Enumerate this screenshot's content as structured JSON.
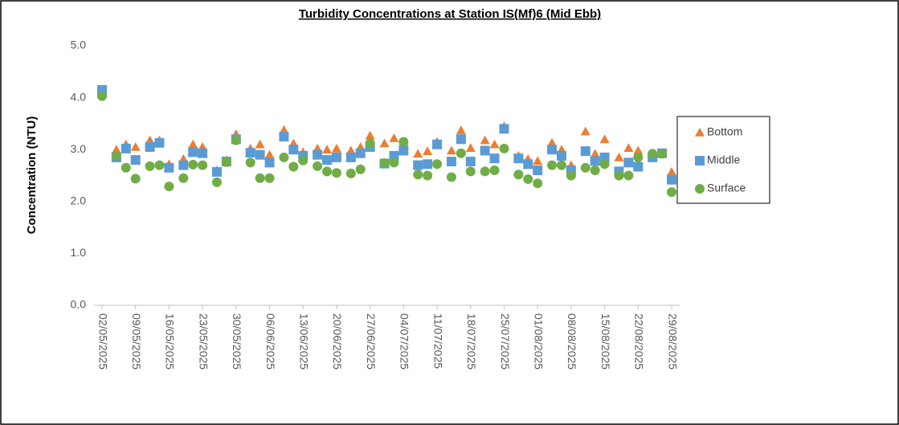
{
  "chart_data": {
    "type": "scatter",
    "title": "Turbidity Concentrations at Station IS(Mf)6 (Mid Ebb)",
    "ylabel": "Concentration (NTU)",
    "x": [
      "02/05/2025",
      "05/05/2025",
      "07/05/2025",
      "09/05/2025",
      "12/05/2025",
      "14/05/2025",
      "16/05/2025",
      "19/05/2025",
      "21/05/2025",
      "23/05/2025",
      "26/05/2025",
      "28/05/2025",
      "30/05/2025",
      "02/06/2025",
      "04/06/2025",
      "06/06/2025",
      "09/06/2025",
      "11/06/2025",
      "13/06/2025",
      "16/06/2025",
      "18/06/2025",
      "20/06/2025",
      "23/06/2025",
      "25/06/2025",
      "27/06/2025",
      "30/06/2025",
      "02/07/2025",
      "04/07/2025",
      "07/07/2025",
      "09/07/2025",
      "11/07/2025",
      "14/07/2025",
      "16/07/2025",
      "18/07/2025",
      "21/07/2025",
      "23/07/2025",
      "25/07/2025",
      "28/07/2025",
      "30/07/2025",
      "01/08/2025",
      "04/08/2025",
      "06/08/2025",
      "08/08/2025",
      "11/08/2025",
      "13/08/2025",
      "15/08/2025",
      "18/08/2025",
      "20/08/2025",
      "22/08/2025",
      "25/08/2025",
      "27/08/2025",
      "29/08/2025"
    ],
    "series": [
      {
        "name": "Bottom",
        "color": "#ed7d31",
        "marker": "triangle",
        "values": [
          4.07,
          3.0,
          3.1,
          3.05,
          3.18,
          3.18,
          2.72,
          2.82,
          3.1,
          3.05,
          2.6,
          2.8,
          3.3,
          3.02,
          3.1,
          2.9,
          3.38,
          3.12,
          2.95,
          3.02,
          3.0,
          3.02,
          2.98,
          3.05,
          3.27,
          3.12,
          3.22,
          3.15,
          2.92,
          2.97,
          3.15,
          2.98,
          3.37,
          3.03,
          3.18,
          3.1,
          3.45,
          2.88,
          2.82,
          2.78,
          3.13,
          3.0,
          2.7,
          3.35,
          2.92,
          3.2,
          2.85,
          3.03,
          2.98,
          2.9,
          2.92,
          2.57
        ]
      },
      {
        "name": "Middle",
        "color": "#5b9bd5",
        "marker": "square",
        "values": [
          4.15,
          2.85,
          3.02,
          2.8,
          3.05,
          3.13,
          2.65,
          2.7,
          2.95,
          2.93,
          2.57,
          2.77,
          3.2,
          2.94,
          2.9,
          2.75,
          3.25,
          3.0,
          2.88,
          2.9,
          2.8,
          2.85,
          2.85,
          2.93,
          3.05,
          2.73,
          2.88,
          2.98,
          2.7,
          2.72,
          3.1,
          2.77,
          3.2,
          2.77,
          2.98,
          2.83,
          3.4,
          2.83,
          2.72,
          2.6,
          3.0,
          2.88,
          2.6,
          2.97,
          2.78,
          2.85,
          2.58,
          2.75,
          2.67,
          2.85,
          2.93,
          2.42
        ]
      },
      {
        "name": "Surface",
        "color": "#70ad47",
        "marker": "circle",
        "values": [
          4.03,
          2.88,
          2.65,
          2.44,
          2.68,
          2.7,
          2.29,
          2.45,
          2.71,
          2.7,
          2.37,
          2.76,
          3.18,
          2.75,
          2.45,
          2.45,
          2.85,
          2.67,
          2.79,
          2.68,
          2.58,
          2.55,
          2.54,
          2.62,
          3.12,
          2.74,
          2.75,
          3.15,
          2.52,
          2.5,
          2.72,
          2.47,
          2.93,
          2.58,
          2.58,
          2.6,
          3.02,
          2.52,
          2.43,
          2.35,
          2.7,
          2.7,
          2.5,
          2.65,
          2.6,
          2.72,
          2.5,
          2.5,
          2.85,
          2.92,
          2.92,
          2.18
        ]
      }
    ],
    "xlim": [
      "02/05/2025",
      "29/08/2025"
    ],
    "xticks": [
      "02/05/2025",
      "09/05/2025",
      "16/05/2025",
      "23/05/2025",
      "30/05/2025",
      "06/06/2025",
      "13/06/2025",
      "20/06/2025",
      "27/06/2025",
      "04/07/2025",
      "11/07/2025",
      "18/07/2025",
      "25/07/2025",
      "01/08/2025",
      "08/08/2025",
      "15/08/2025",
      "22/08/2025",
      "29/08/2025"
    ],
    "ylim": [
      0,
      5
    ],
    "yticks": [
      {
        "value": 0,
        "label": "0.0"
      },
      {
        "value": 1,
        "label": "1.0"
      },
      {
        "value": 2,
        "label": "2.0"
      },
      {
        "value": 3,
        "label": "3.0"
      },
      {
        "value": 4,
        "label": "4.0"
      },
      {
        "value": 5,
        "label": "5.0"
      }
    ],
    "grid": false,
    "legend": "right"
  }
}
